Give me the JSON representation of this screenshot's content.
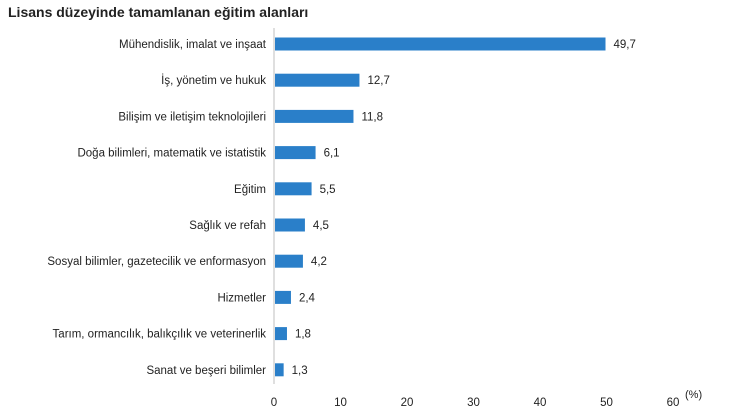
{
  "chart_data": {
    "type": "bar",
    "orientation": "horizontal",
    "title": "Lisans düzeyinde tamamlanan eğitim alanları",
    "categories": [
      "Mühendislik, imalat ve inşaat",
      "İş, yönetim ve hukuk",
      "Bilişim ve iletişim teknolojileri",
      "Doğa bilimleri, matematik ve istatistik",
      "Eğitim",
      "Sağlık ve refah",
      "Sosyal bilimler, gazetecilik ve enformasyon",
      "Hizmetler",
      "Tarım, ormancılık, balıkçılık ve veterinerlik",
      "Sanat ve beşeri bilimler"
    ],
    "values": [
      49.7,
      12.7,
      11.8,
      6.1,
      5.5,
      4.5,
      4.2,
      2.4,
      1.8,
      1.3
    ],
    "value_labels": [
      "49,7",
      "12,7",
      "11,8",
      "6,1",
      "5,5",
      "4,5",
      "4,2",
      "2,4",
      "1,8",
      "1,3"
    ],
    "xlim": [
      0,
      60
    ],
    "xticks": [
      0,
      10,
      20,
      30,
      40,
      50,
      60
    ],
    "xunit": "(%)",
    "grid": false,
    "bar_color": "#2a7fc9"
  }
}
